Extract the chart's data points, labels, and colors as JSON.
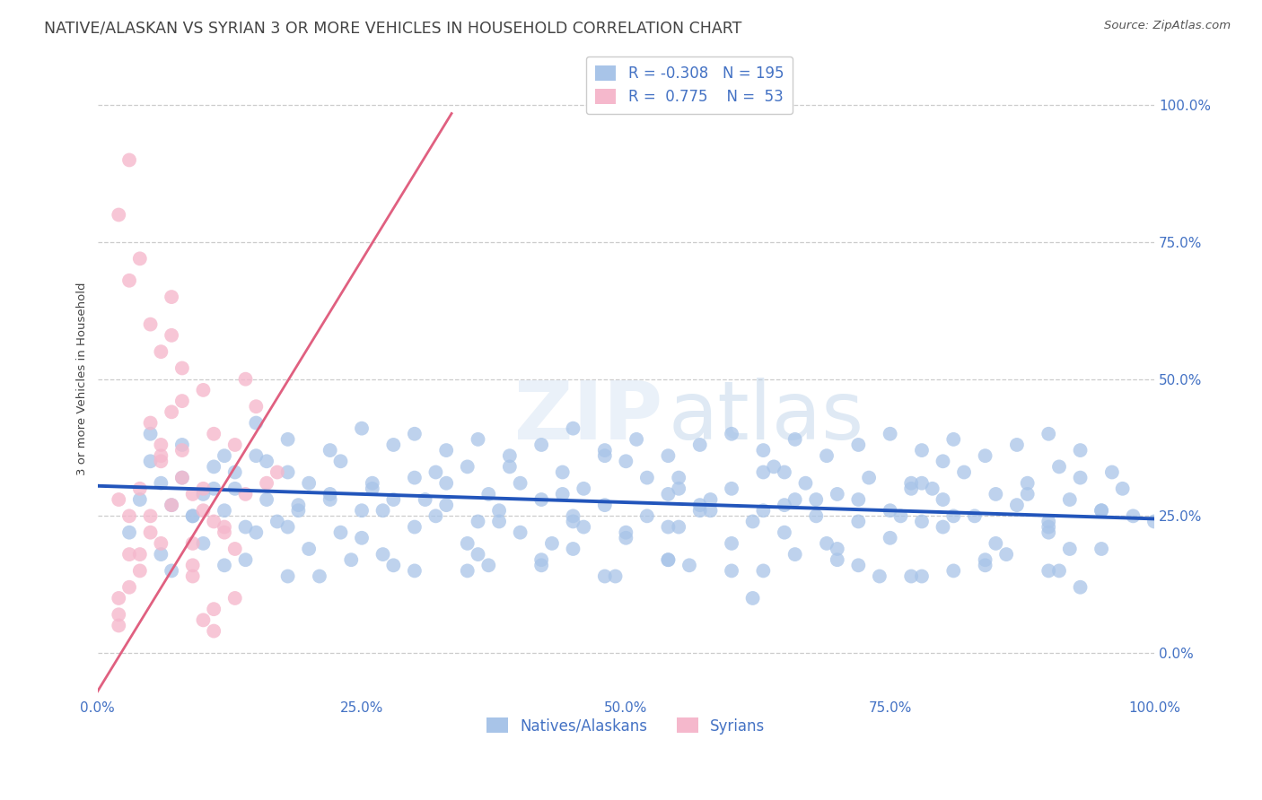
{
  "title": "NATIVE/ALASKAN VS SYRIAN 3 OR MORE VEHICLES IN HOUSEHOLD CORRELATION CHART",
  "source_text": "Source: ZipAtlas.com",
  "ylabel_text": "3 or more Vehicles in Household",
  "watermark_zip": "ZIP",
  "watermark_atlas": "atlas",
  "xlim": [
    0.0,
    1.0
  ],
  "ylim": [
    -0.08,
    1.08
  ],
  "xticks": [
    0.0,
    0.25,
    0.5,
    0.75,
    1.0
  ],
  "yticks": [
    0.0,
    0.25,
    0.5,
    0.75,
    1.0
  ],
  "xtick_labels": [
    "0.0%",
    "25.0%",
    "50.0%",
    "75.0%",
    "100.0%"
  ],
  "ytick_labels_right": [
    "0.0%",
    "25.0%",
    "50.0%",
    "75.0%",
    "100.0%"
  ],
  "blue_R": "-0.308",
  "blue_N": "195",
  "pink_R": "0.775",
  "pink_N": "53",
  "blue_label": "Natives/Alaskans",
  "pink_label": "Syrians",
  "blue_line_color": "#2255bb",
  "pink_line_color": "#e06080",
  "blue_dot_color": "#a8c4e8",
  "pink_dot_color": "#f5b8cc",
  "axis_color": "#4472c4",
  "title_color": "#444444",
  "grid_color": "#cccccc",
  "bg_color": "#ffffff",
  "title_fontsize": 12.5,
  "label_fontsize": 9.5,
  "tick_fontsize": 11,
  "source_fontsize": 9.5,
  "legend_fontsize": 12,
  "blue_scatter_x": [
    0.04,
    0.06,
    0.03,
    0.05,
    0.07,
    0.08,
    0.09,
    0.1,
    0.11,
    0.12,
    0.13,
    0.14,
    0.15,
    0.16,
    0.17,
    0.18,
    0.19,
    0.2,
    0.22,
    0.23,
    0.25,
    0.26,
    0.28,
    0.3,
    0.32,
    0.33,
    0.35,
    0.37,
    0.38,
    0.4,
    0.42,
    0.44,
    0.45,
    0.46,
    0.48,
    0.5,
    0.52,
    0.54,
    0.55,
    0.57,
    0.58,
    0.6,
    0.62,
    0.63,
    0.65,
    0.67,
    0.68,
    0.7,
    0.72,
    0.73,
    0.75,
    0.77,
    0.78,
    0.8,
    0.82,
    0.83,
    0.85,
    0.87,
    0.88,
    0.9,
    0.92,
    0.93,
    0.95,
    0.97,
    0.98,
    0.05,
    0.08,
    0.12,
    0.15,
    0.18,
    0.22,
    0.25,
    0.28,
    0.3,
    0.33,
    0.36,
    0.39,
    0.42,
    0.45,
    0.48,
    0.51,
    0.54,
    0.57,
    0.6,
    0.63,
    0.66,
    0.69,
    0.72,
    0.75,
    0.78,
    0.81,
    0.84,
    0.87,
    0.9,
    0.93,
    0.1,
    0.15,
    0.2,
    0.25,
    0.3,
    0.35,
    0.4,
    0.45,
    0.5,
    0.55,
    0.6,
    0.65,
    0.7,
    0.75,
    0.8,
    0.85,
    0.9,
    0.95,
    0.07,
    0.14,
    0.21,
    0.28,
    0.35,
    0.42,
    0.49,
    0.56,
    0.63,
    0.7,
    0.77,
    0.84,
    0.91,
    0.06,
    0.12,
    0.18,
    0.24,
    0.3,
    0.36,
    0.42,
    0.48,
    0.54,
    0.6,
    0.66,
    0.72,
    0.78,
    0.84,
    0.9,
    0.09,
    0.18,
    0.27,
    0.36,
    0.45,
    0.54,
    0.63,
    0.72,
    0.81,
    0.9,
    0.11,
    0.22,
    0.33,
    0.44,
    0.55,
    0.66,
    0.77,
    0.88,
    0.13,
    0.26,
    0.39,
    0.52,
    0.65,
    0.78,
    0.91,
    0.16,
    0.32,
    0.48,
    0.64,
    0.8,
    0.96,
    0.19,
    0.38,
    0.57,
    0.76,
    0.95,
    0.23,
    0.46,
    0.69,
    0.92,
    0.27,
    0.54,
    0.81,
    0.31,
    0.62,
    0.93,
    0.37,
    0.74,
    0.43,
    0.86,
    0.5,
    1.0,
    0.58,
    0.68,
    0.79
  ],
  "blue_scatter_y": [
    0.28,
    0.31,
    0.22,
    0.35,
    0.27,
    0.32,
    0.25,
    0.29,
    0.34,
    0.26,
    0.3,
    0.23,
    0.36,
    0.28,
    0.24,
    0.33,
    0.27,
    0.31,
    0.29,
    0.35,
    0.26,
    0.3,
    0.28,
    0.32,
    0.25,
    0.27,
    0.34,
    0.29,
    0.26,
    0.31,
    0.28,
    0.33,
    0.24,
    0.3,
    0.27,
    0.35,
    0.25,
    0.29,
    0.32,
    0.26,
    0.28,
    0.3,
    0.24,
    0.33,
    0.27,
    0.31,
    0.25,
    0.29,
    0.28,
    0.32,
    0.26,
    0.3,
    0.24,
    0.28,
    0.33,
    0.25,
    0.29,
    0.27,
    0.31,
    0.24,
    0.28,
    0.32,
    0.26,
    0.3,
    0.25,
    0.4,
    0.38,
    0.36,
    0.42,
    0.39,
    0.37,
    0.41,
    0.38,
    0.4,
    0.37,
    0.39,
    0.36,
    0.38,
    0.41,
    0.37,
    0.39,
    0.36,
    0.38,
    0.4,
    0.37,
    0.39,
    0.36,
    0.38,
    0.4,
    0.37,
    0.39,
    0.36,
    0.38,
    0.4,
    0.37,
    0.2,
    0.22,
    0.19,
    0.21,
    0.23,
    0.2,
    0.22,
    0.19,
    0.21,
    0.23,
    0.2,
    0.22,
    0.19,
    0.21,
    0.23,
    0.2,
    0.22,
    0.19,
    0.15,
    0.17,
    0.14,
    0.16,
    0.15,
    0.17,
    0.14,
    0.16,
    0.15,
    0.17,
    0.14,
    0.16,
    0.15,
    0.18,
    0.16,
    0.14,
    0.17,
    0.15,
    0.18,
    0.16,
    0.14,
    0.17,
    0.15,
    0.18,
    0.16,
    0.14,
    0.17,
    0.15,
    0.25,
    0.23,
    0.26,
    0.24,
    0.25,
    0.23,
    0.26,
    0.24,
    0.25,
    0.23,
    0.3,
    0.28,
    0.31,
    0.29,
    0.3,
    0.28,
    0.31,
    0.29,
    0.33,
    0.31,
    0.34,
    0.32,
    0.33,
    0.31,
    0.34,
    0.35,
    0.33,
    0.36,
    0.34,
    0.35,
    0.33,
    0.26,
    0.24,
    0.27,
    0.25,
    0.26,
    0.22,
    0.23,
    0.2,
    0.19,
    0.18,
    0.17,
    0.15,
    0.28,
    0.1,
    0.12,
    0.16,
    0.14,
    0.2,
    0.18,
    0.22,
    0.24,
    0.26,
    0.28,
    0.3
  ],
  "pink_scatter_x": [
    0.02,
    0.03,
    0.04,
    0.05,
    0.06,
    0.07,
    0.08,
    0.09,
    0.1,
    0.11,
    0.12,
    0.13,
    0.14,
    0.15,
    0.16,
    0.17,
    0.03,
    0.05,
    0.08,
    0.11,
    0.14,
    0.06,
    0.09,
    0.04,
    0.07,
    0.02,
    0.1,
    0.13,
    0.05,
    0.08,
    0.11,
    0.03,
    0.06,
    0.09,
    0.12,
    0.02,
    0.04,
    0.07,
    0.1,
    0.13,
    0.02,
    0.05,
    0.08,
    0.11,
    0.03,
    0.06,
    0.09,
    0.02,
    0.04,
    0.07,
    0.1,
    0.03,
    0.06
  ],
  "pink_scatter_y": [
    0.28,
    0.25,
    0.3,
    0.22,
    0.35,
    0.27,
    0.32,
    0.2,
    0.26,
    0.4,
    0.23,
    0.38,
    0.29,
    0.45,
    0.31,
    0.33,
    0.18,
    0.42,
    0.37,
    0.24,
    0.5,
    0.36,
    0.29,
    0.15,
    0.44,
    0.05,
    0.48,
    0.19,
    0.6,
    0.52,
    0.08,
    0.12,
    0.55,
    0.16,
    0.22,
    0.07,
    0.72,
    0.65,
    0.3,
    0.1,
    0.1,
    0.25,
    0.46,
    0.04,
    0.68,
    0.38,
    0.14,
    0.8,
    0.18,
    0.58,
    0.06,
    0.9,
    0.2
  ],
  "blue_trend_x": [
    0.0,
    1.0
  ],
  "blue_trend_y": [
    0.305,
    0.245
  ],
  "pink_trend_x": [
    0.0,
    0.335
  ],
  "pink_trend_y": [
    -0.07,
    0.985
  ]
}
